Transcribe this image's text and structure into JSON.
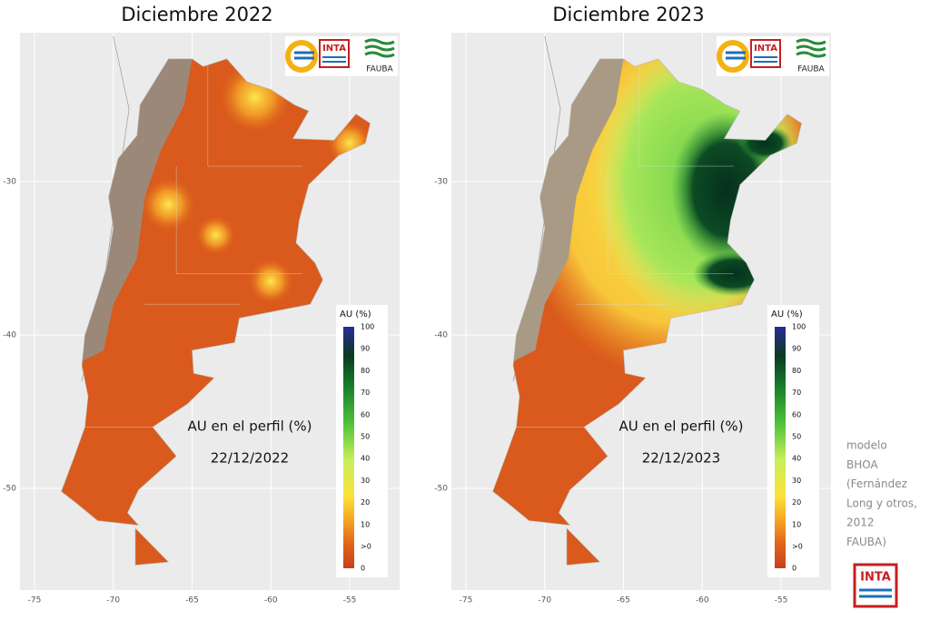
{
  "panels": [
    {
      "title": "Diciembre 2022",
      "caption": "AU en el perfil (%)",
      "date": "22/12/2022"
    },
    {
      "title": "Diciembre 2023",
      "caption": "AU en el perfil (%)",
      "date": "22/12/2023"
    }
  ],
  "logos": [
    "INTA",
    "FAUBA"
  ],
  "x_axis_labels": [
    "-75",
    "-70",
    "-65",
    "-60",
    "-55"
  ],
  "y_axis_labels": [
    "-30",
    "-40",
    "-50"
  ],
  "legend": {
    "title": "AU (%)",
    "ticks": [
      "100",
      "90",
      "80",
      "70",
      "60",
      "50",
      "40",
      "30",
      "20",
      "10",
      ">0",
      "0"
    ]
  },
  "note": [
    "modelo",
    "BHOA",
    "(Fernández",
    "Long y otros,",
    "2012",
    "FAUBA)"
  ]
}
